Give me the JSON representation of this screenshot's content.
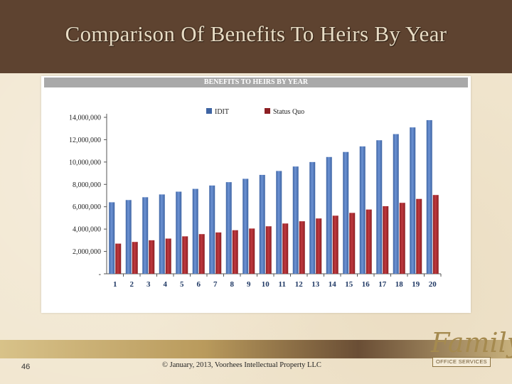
{
  "slide": {
    "title": "Comparison Of Benefits To Heirs By Year",
    "page_number": "46",
    "copyright": "© January, 2013, Voorhees Intellectual Property LLC",
    "logo_text": "Family",
    "logo_subtext": "OFFICE SERVICES"
  },
  "colors": {
    "title_bar": "#5e4330",
    "idit": "#3e64a3",
    "status_quo": "#8c1f23"
  },
  "chart_data": {
    "type": "bar",
    "title": "BENEFITS TO HEIRS BY YEAR",
    "categories": [
      "1",
      "2",
      "3",
      "4",
      "5",
      "6",
      "7",
      "8",
      "9",
      "10",
      "11",
      "12",
      "13",
      "14",
      "15",
      "16",
      "17",
      "18",
      "19",
      "20"
    ],
    "series": [
      {
        "name": "IDIT",
        "values": [
          6400000,
          6600000,
          6850000,
          7100000,
          7350000,
          7600000,
          7900000,
          8200000,
          8500000,
          8850000,
          9200000,
          9600000,
          10000000,
          10450000,
          10900000,
          11400000,
          11950000,
          12500000,
          13100000,
          13750000
        ]
      },
      {
        "name": "Status Quo",
        "values": [
          2700000,
          2850000,
          3000000,
          3150000,
          3350000,
          3550000,
          3700000,
          3900000,
          4050000,
          4250000,
          4500000,
          4700000,
          4950000,
          5200000,
          5450000,
          5750000,
          6050000,
          6350000,
          6700000,
          7050000
        ]
      }
    ],
    "yticks": [
      "-",
      "2,000,000",
      "4,000,000",
      "6,000,000",
      "8,000,000",
      "10,000,000",
      "12,000,000",
      "14,000,000"
    ],
    "ylim": [
      0,
      14000000
    ],
    "legend_position": "top",
    "grid": false
  }
}
